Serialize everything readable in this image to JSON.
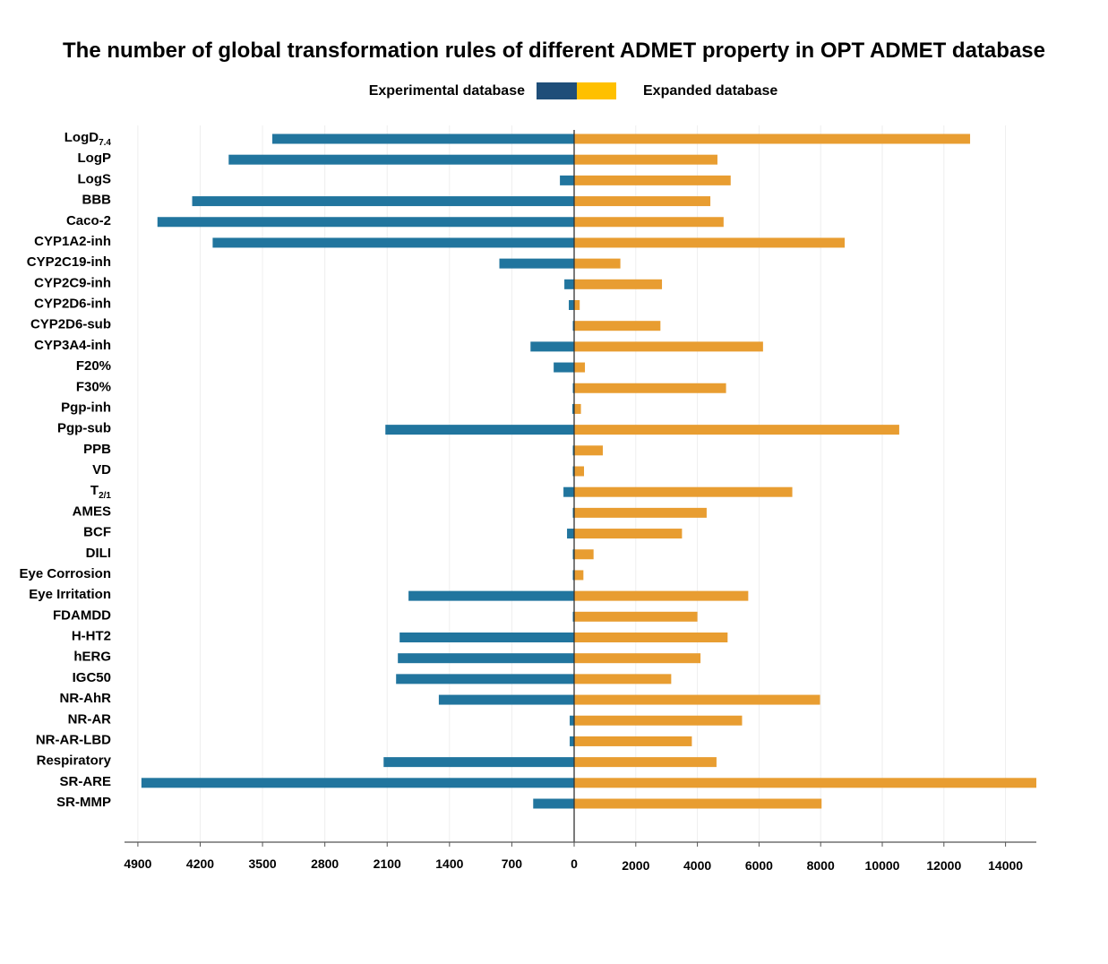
{
  "chart_data": {
    "type": "bar",
    "orientation": "horizontal-diverging",
    "title": "The number of global transformation rules of different ADMET property in OPT ADMET database",
    "legend": {
      "placement": "top-center",
      "left_label": "Experimental database",
      "right_label": "Expanded database",
      "swatch_colors": [
        "#1F4E79",
        "#FFC000"
      ]
    },
    "categories": [
      {
        "main": "LogD",
        "sub": "7.4"
      },
      {
        "main": "LogP",
        "sub": ""
      },
      {
        "main": "LogS",
        "sub": ""
      },
      {
        "main": "BBB",
        "sub": ""
      },
      {
        "main": "Caco-2",
        "sub": ""
      },
      {
        "main": "CYP1A2-inh",
        "sub": ""
      },
      {
        "main": "CYP2C19-inh",
        "sub": ""
      },
      {
        "main": "CYP2C9-inh",
        "sub": ""
      },
      {
        "main": "CYP2D6-inh",
        "sub": ""
      },
      {
        "main": "CYP2D6-sub",
        "sub": ""
      },
      {
        "main": "CYP3A4-inh",
        "sub": ""
      },
      {
        "main": "F20%",
        "sub": ""
      },
      {
        "main": "F30%",
        "sub": ""
      },
      {
        "main": "Pgp-inh",
        "sub": ""
      },
      {
        "main": "Pgp-sub",
        "sub": ""
      },
      {
        "main": "PPB",
        "sub": ""
      },
      {
        "main": "VD",
        "sub": ""
      },
      {
        "main": "T",
        "sub": "2/1"
      },
      {
        "main": "AMES",
        "sub": ""
      },
      {
        "main": "BCF",
        "sub": ""
      },
      {
        "main": "DILI",
        "sub": ""
      },
      {
        "main": "Eye Corrosion",
        "sub": ""
      },
      {
        "main": "Eye Irritation",
        "sub": ""
      },
      {
        "main": "FDAMDD",
        "sub": ""
      },
      {
        "main": "H-HT2",
        "sub": ""
      },
      {
        "main": "hERG",
        "sub": ""
      },
      {
        "main": "IGC50",
        "sub": ""
      },
      {
        "main": "NR-AhR",
        "sub": ""
      },
      {
        "main": "NR-AR",
        "sub": ""
      },
      {
        "main": "NR-AR-LBD",
        "sub": ""
      },
      {
        "main": "Respiratory",
        "sub": ""
      },
      {
        "main": "SR-ARE",
        "sub": ""
      },
      {
        "main": "SR-MMP",
        "sub": ""
      }
    ],
    "series": [
      {
        "name": "Experimental database",
        "color": "#21759E",
        "direction": "left",
        "values": [
          3390,
          3880,
          160,
          4290,
          4680,
          4060,
          840,
          110,
          60,
          10,
          490,
          230,
          10,
          20,
          2120,
          10,
          10,
          120,
          10,
          80,
          10,
          10,
          1860,
          10,
          1960,
          1980,
          2000,
          1520,
          50,
          50,
          2140,
          4860,
          460
        ]
      },
      {
        "name": "Expanded database",
        "color": "#E89D31",
        "direction": "right",
        "values": [
          12850,
          4650,
          5080,
          4420,
          4850,
          8780,
          1500,
          2850,
          180,
          2800,
          6130,
          350,
          4930,
          220,
          10550,
          930,
          320,
          7080,
          4300,
          3500,
          630,
          300,
          5650,
          4000,
          4980,
          4100,
          3150,
          7980,
          5450,
          3820,
          4620,
          15000,
          8030
        ]
      }
    ],
    "left_axis": {
      "ticks": [
        4900,
        4200,
        3500,
        2800,
        2100,
        1400,
        700,
        0
      ],
      "range": [
        0,
        5050
      ]
    },
    "right_axis": {
      "ticks": [
        0,
        2000,
        4000,
        6000,
        8000,
        10000,
        12000,
        14000
      ],
      "range": [
        0,
        15000
      ]
    },
    "grid": true
  }
}
